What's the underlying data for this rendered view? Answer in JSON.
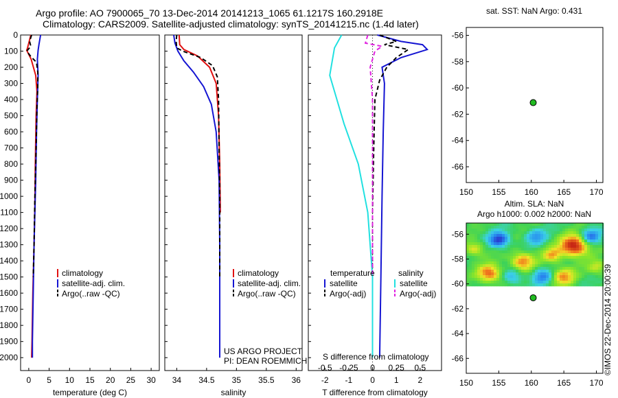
{
  "header": {
    "line1": "Argo profile: AO 7900065_70 13-Dec-2014 20141213_1065 61.1217S 160.2918E",
    "line2": "Climatology: CARS2009. Satellite-adjusted climatology: synTS_20141215.nc (1.4d later)"
  },
  "colors": {
    "climatology": "#e01010",
    "satellite": "#1414d2",
    "argo": "#000000",
    "salinity_satellite": "#20e0e0",
    "salinity_argo": "#e020e0",
    "marker": "#22bb22"
  },
  "watermark": "©IMOS 22-Dec-2014 20:00:39",
  "charts": {
    "temperature": {
      "type": "line",
      "xlabel": "temperature (deg C)",
      "xlim": [
        -2,
        32
      ],
      "xticks": [
        0,
        5,
        10,
        15,
        20,
        25,
        30
      ],
      "ylim": [
        0,
        2080
      ],
      "yticks": [
        0,
        100,
        200,
        300,
        400,
        500,
        600,
        700,
        800,
        900,
        1000,
        1100,
        1200,
        1300,
        1400,
        1500,
        1600,
        1700,
        1800,
        1900,
        2000
      ],
      "legend": [
        "climatology",
        "satellite-adj. clim.",
        "Argo(..raw -QC)"
      ],
      "series": [
        {
          "name": "climatology",
          "color": "red",
          "dashed": false,
          "points": [
            [
              0.5,
              0
            ],
            [
              -0.3,
              80
            ],
            [
              -0.5,
              95
            ],
            [
              0.6,
              150
            ],
            [
              1.7,
              250
            ],
            [
              2.0,
              350
            ],
            [
              1.8,
              500
            ],
            [
              1.6,
              800
            ],
            [
              1.5,
              1050
            ],
            [
              1.3,
              1300
            ],
            [
              1.0,
              1600
            ],
            [
              0.8,
              1900
            ],
            [
              0.7,
              2000
            ]
          ]
        },
        {
          "name": "satellite-adj. clim.",
          "color": "blue",
          "dashed": false,
          "points": [
            [
              2.9,
              0
            ],
            [
              2.5,
              60
            ],
            [
              2.3,
              95
            ],
            [
              2.1,
              150
            ],
            [
              2.3,
              250
            ],
            [
              2.1,
              400
            ],
            [
              1.9,
              600
            ],
            [
              1.7,
              900
            ],
            [
              1.5,
              1100
            ],
            [
              1.3,
              1300
            ],
            [
              1.1,
              1600
            ],
            [
              0.9,
              1900
            ],
            [
              0.9,
              2000
            ]
          ]
        },
        {
          "name": "Argo(..raw -QC)",
          "color": "black",
          "dashed": true,
          "points": [
            [
              0.7,
              0
            ],
            [
              0.2,
              40
            ],
            [
              0.5,
              70
            ],
            [
              -0.5,
              100
            ],
            [
              0.4,
              130
            ],
            [
              1.9,
              170
            ],
            [
              2.2,
              230
            ],
            [
              2.2,
              320
            ],
            [
              2.0,
              450
            ],
            [
              1.8,
              700
            ],
            [
              1.5,
              1000
            ],
            [
              1.3,
              1300
            ],
            [
              1.1,
              1500
            ]
          ]
        }
      ]
    },
    "salinity": {
      "type": "line",
      "xlabel": "salinity",
      "xlim": [
        33.8,
        36.1
      ],
      "xticks": [
        34,
        34.5,
        35,
        35.5,
        36
      ],
      "xticklabels": [
        "34",
        "34.5",
        "35",
        "35.5",
        "36"
      ],
      "legend": [
        "climatology",
        "satellite-adj. clim.",
        "Argo(..raw -QC)"
      ],
      "annotation": [
        "US ARGO PROJECT",
        "PI: DEAN ROEMMICH"
      ],
      "series": [
        {
          "name": "climatology",
          "color": "red",
          "dashed": false,
          "points": [
            [
              34.04,
              0
            ],
            [
              34.05,
              60
            ],
            [
              34.12,
              90
            ],
            [
              34.35,
              130
            ],
            [
              34.55,
              200
            ],
            [
              34.66,
              300
            ],
            [
              34.7,
              500
            ],
            [
              34.72,
              800
            ],
            [
              34.73,
              1100
            ]
          ]
        },
        {
          "name": "satellite-adj. clim.",
          "color": "blue",
          "dashed": false,
          "points": [
            [
              33.95,
              0
            ],
            [
              33.97,
              50
            ],
            [
              34.02,
              100
            ],
            [
              34.12,
              160
            ],
            [
              34.28,
              230
            ],
            [
              34.45,
              320
            ],
            [
              34.58,
              430
            ],
            [
              34.66,
              600
            ],
            [
              34.71,
              900
            ],
            [
              34.72,
              1300
            ],
            [
              34.72,
              1800
            ],
            [
              34.72,
              2000
            ]
          ]
        },
        {
          "name": "Argo(..raw -QC)",
          "color": "black",
          "dashed": true,
          "points": [
            [
              34.0,
              0
            ],
            [
              33.99,
              40
            ],
            [
              34.0,
              80
            ],
            [
              34.1,
              100
            ],
            [
              34.4,
              140
            ],
            [
              34.6,
              190
            ],
            [
              34.68,
              260
            ],
            [
              34.7,
              400
            ],
            [
              34.71,
              700
            ],
            [
              34.72,
              1000
            ],
            [
              34.72,
              1500
            ]
          ]
        }
      ]
    },
    "difference": {
      "type": "line",
      "xlabel": "T difference from climatology",
      "xlim": [
        -2.7,
        2.9
      ],
      "xticks": [
        -2,
        -1,
        0,
        1,
        2
      ],
      "top_label": "S difference from climatology",
      "top_xlim": [
        -0.675,
        0.725
      ],
      "top_xticks": [
        -0.5,
        -0.25,
        0,
        0.25,
        0.5
      ],
      "top_xticklabels": [
        "-0.5",
        "-0.25",
        "0",
        "0.25",
        "0.5"
      ],
      "legend_temperature_title": "temperature",
      "legend_salinity_title": "salinity",
      "legend_temperature": [
        "satellite",
        "Argo(-adj)"
      ],
      "legend_salinity": [
        "satellite",
        "Argo(-adj)"
      ],
      "series": [
        {
          "name": "temperature satellite",
          "color": "blue",
          "dashed": false,
          "points": [
            [
              0.2,
              0
            ],
            [
              1.2,
              40
            ],
            [
              2.1,
              60
            ],
            [
              2.3,
              90
            ],
            [
              1.2,
              140
            ],
            [
              0.4,
              200
            ],
            [
              0.5,
              300
            ],
            [
              0.45,
              600
            ],
            [
              0.4,
              1000
            ],
            [
              0.35,
              1500
            ],
            [
              0.3,
              2000
            ]
          ]
        },
        {
          "name": "temperature Argo(-adj)",
          "color": "black",
          "dashed": true,
          "points": [
            [
              0.3,
              0
            ],
            [
              1.0,
              40
            ],
            [
              0.5,
              60
            ],
            [
              1.5,
              90
            ],
            [
              1.0,
              140
            ],
            [
              0.6,
              200
            ],
            [
              0.3,
              280
            ],
            [
              0.1,
              400
            ],
            [
              0.05,
              700
            ],
            [
              0.0,
              1100
            ],
            [
              0.0,
              1500
            ]
          ]
        },
        {
          "name": "salinity satellite",
          "color": "cyan",
          "dashed": false,
          "points": [
            [
              -1.3,
              0
            ],
            [
              -1.6,
              80
            ],
            [
              -1.8,
              250
            ],
            [
              -1.5,
              400
            ],
            [
              -1.2,
              550
            ],
            [
              -0.6,
              800
            ],
            [
              -0.2,
              1100
            ],
            [
              0.0,
              1500
            ],
            [
              0.0,
              2000
            ]
          ]
        },
        {
          "name": "salinity Argo(-adj)",
          "color": "magenta",
          "dashed": true,
          "points": [
            [
              -0.2,
              0
            ],
            [
              -0.3,
              50
            ],
            [
              0.4,
              70
            ],
            [
              0.1,
              100
            ],
            [
              -0.1,
              200
            ],
            [
              0.0,
              400
            ],
            [
              0.0,
              800
            ],
            [
              0.0,
              1500
            ]
          ]
        }
      ]
    },
    "sst_map": {
      "type": "scatter",
      "title": "sat. SST: NaN Argo: 0.431",
      "xlim": [
        150,
        171
      ],
      "ylim": [
        -67.2,
        -55.4
      ],
      "xticks": [
        150,
        155,
        160,
        165,
        170
      ],
      "yticks": [
        -56,
        -58,
        -60,
        -62,
        -64,
        -66
      ],
      "point": [
        160.29,
        -61.12
      ]
    },
    "sla_map": {
      "type": "heatmap",
      "title_line1": "Altim. SLA: NaN",
      "title_line2": "Argo h1000: 0.002 h2000: NaN",
      "xlim": [
        150,
        171
      ],
      "ylim": [
        -67.2,
        -55.1
      ],
      "xticks": [
        150,
        155,
        160,
        165,
        170
      ],
      "yticks": [
        -56,
        -58,
        -60,
        -62,
        -64,
        -66
      ],
      "field_lat_range": [
        -60.05,
        -55.1
      ],
      "point": [
        160.29,
        -61.12
      ]
    }
  }
}
